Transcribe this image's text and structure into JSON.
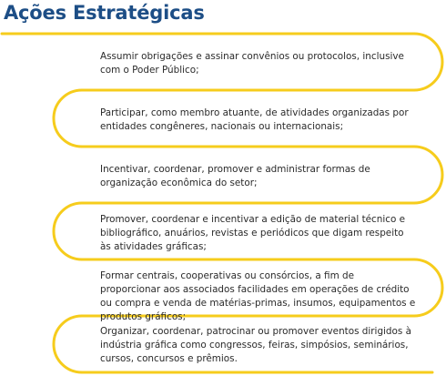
{
  "page": {
    "title": "Ações Estratégicas",
    "colors": {
      "title": "#1d4e86",
      "accent": "#f6cc1c",
      "text": "#2a2a2a"
    }
  },
  "items": [
    {
      "text": "Assumir obrigações e assinar convênios ou protocolos, inclusive com o Poder Público;"
    },
    {
      "text": "Participar, como membro atuante, de atividades organizadas por entidades congêneres, nacionais ou internacionais;"
    },
    {
      "text": "Incentivar, coordenar, promover e administrar formas de organização econômica do setor;"
    },
    {
      "text": "Promover, coordenar e incentivar a edição de material técnico e bibliográfico, anuários, revistas e periódicos que digam respeito às atividades gráficas;"
    },
    {
      "text": "Formar centrais, cooperativas ou consórcios, a fim de proporcionar aos associados facilidades em operações de crédito ou compra e venda de matérias-primas, insumos, equipamentos e produtos gráficos;"
    },
    {
      "text": "Organizar, coordenar, patrocinar ou promover eventos dirigidos à indústria gráfica como congressos, feiras, simpósios, seminários, cursos, concursos e prêmios."
    }
  ]
}
